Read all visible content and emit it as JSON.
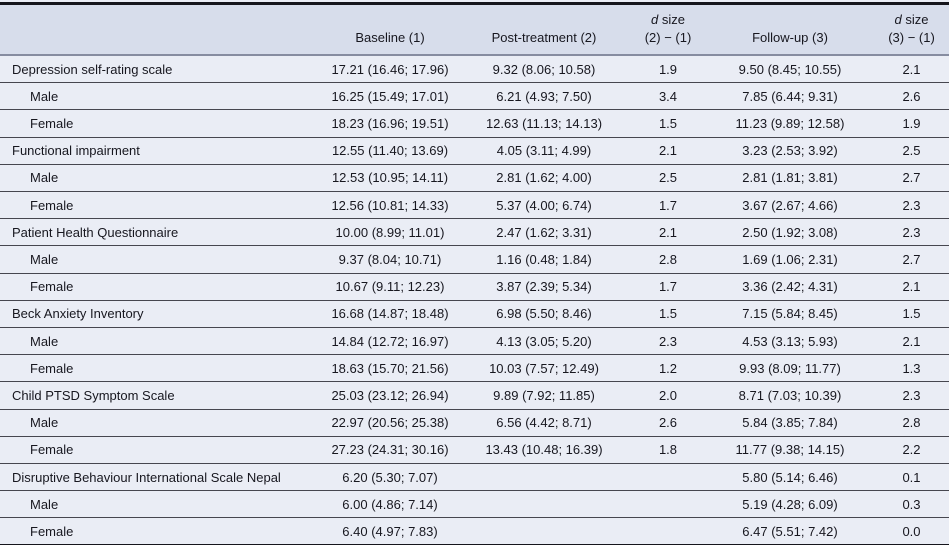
{
  "table": {
    "header": [
      {
        "id": "rowlabel",
        "lines": [
          ""
        ],
        "em_first": false
      },
      {
        "id": "baseline",
        "lines": [
          "Baseline (1)"
        ],
        "em_first": false
      },
      {
        "id": "post_treatment",
        "lines": [
          "Post-treatment (2)"
        ],
        "em_first": false
      },
      {
        "id": "d_size_2_1",
        "lines": [
          "d size",
          "(2) − (1)"
        ],
        "em_first": true
      },
      {
        "id": "follow_up",
        "lines": [
          "Follow-up (3)"
        ],
        "em_first": false
      },
      {
        "id": "d_size_3_1",
        "lines": [
          "d size",
          "(3) − (1)"
        ],
        "em_first": true
      }
    ],
    "rows": [
      {
        "label": "Depression self-rating scale",
        "indent": false,
        "baseline": "17.21 (16.46; 17.96)",
        "post": "9.32 (8.06; 10.58)",
        "d21": "1.9",
        "follow": "9.50 (8.45; 10.55)",
        "d31": "2.1"
      },
      {
        "label": "Male",
        "indent": true,
        "baseline": "16.25 (15.49; 17.01)",
        "post": "6.21 (4.93; 7.50)",
        "d21": "3.4",
        "follow": "7.85 (6.44; 9.31)",
        "d31": "2.6"
      },
      {
        "label": "Female",
        "indent": true,
        "baseline": "18.23 (16.96; 19.51)",
        "post": "12.63 (11.13; 14.13)",
        "d21": "1.5",
        "follow": "11.23 (9.89; 12.58)",
        "d31": "1.9"
      },
      {
        "label": "Functional impairment",
        "indent": false,
        "baseline": "12.55 (11.40; 13.69)",
        "post": "4.05 (3.11; 4.99)",
        "d21": "2.1",
        "follow": "3.23 (2.53; 3.92)",
        "d31": "2.5"
      },
      {
        "label": "Male",
        "indent": true,
        "baseline": "12.53 (10.95; 14.11)",
        "post": "2.81 (1.62; 4.00)",
        "d21": "2.5",
        "follow": "2.81 (1.81; 3.81)",
        "d31": "2.7"
      },
      {
        "label": "Female",
        "indent": true,
        "baseline": "12.56 (10.81; 14.33)",
        "post": "5.37 (4.00; 6.74)",
        "d21": "1.7",
        "follow": "3.67 (2.67; 4.66)",
        "d31": "2.3"
      },
      {
        "label": "Patient Health Questionnaire",
        "indent": false,
        "baseline": "10.00 (8.99; 11.01)",
        "post": "2.47 (1.62; 3.31)",
        "d21": "2.1",
        "follow": "2.50 (1.92; 3.08)",
        "d31": "2.3"
      },
      {
        "label": "Male",
        "indent": true,
        "baseline": "9.37 (8.04; 10.71)",
        "post": "1.16 (0.48; 1.84)",
        "d21": "2.8",
        "follow": "1.69 (1.06; 2.31)",
        "d31": "2.7"
      },
      {
        "label": "Female",
        "indent": true,
        "baseline": "10.67 (9.11; 12.23)",
        "post": "3.87 (2.39; 5.34)",
        "d21": "1.7",
        "follow": "3.36 (2.42; 4.31)",
        "d31": "2.1"
      },
      {
        "label": "Beck Anxiety Inventory",
        "indent": false,
        "baseline": "16.68 (14.87; 18.48)",
        "post": "6.98 (5.50; 8.46)",
        "d21": "1.5",
        "follow": "7.15 (5.84; 8.45)",
        "d31": "1.5"
      },
      {
        "label": "Male",
        "indent": true,
        "baseline": "14.84 (12.72; 16.97)",
        "post": "4.13 (3.05; 5.20)",
        "d21": "2.3",
        "follow": "4.53 (3.13; 5.93)",
        "d31": "2.1"
      },
      {
        "label": "Female",
        "indent": true,
        "baseline": "18.63 (15.70; 21.56)",
        "post": "10.03 (7.57; 12.49)",
        "d21": "1.2",
        "follow": "9.93 (8.09; 11.77)",
        "d31": "1.3"
      },
      {
        "label": "Child PTSD Symptom Scale",
        "indent": false,
        "baseline": "25.03 (23.12; 26.94)",
        "post": "9.89 (7.92; 11.85)",
        "d21": "2.0",
        "follow": "8.71 (7.03; 10.39)",
        "d31": "2.3"
      },
      {
        "label": "Male",
        "indent": true,
        "baseline": "22.97 (20.56; 25.38)",
        "post": "6.56 (4.42; 8.71)",
        "d21": "2.6",
        "follow": "5.84 (3.85; 7.84)",
        "d31": "2.8"
      },
      {
        "label": "Female",
        "indent": true,
        "baseline": "27.23 (24.31; 30.16)",
        "post": "13.43 (10.48; 16.39)",
        "d21": "1.8",
        "follow": "11.77 (9.38; 14.15)",
        "d31": "2.2"
      },
      {
        "label": "Disruptive Behaviour International Scale Nepal",
        "indent": false,
        "baseline": "6.20 (5.30; 7.07)",
        "post": "",
        "d21": "",
        "follow": "5.80 (5.14; 6.46)",
        "d31": "0.1"
      },
      {
        "label": "Male",
        "indent": true,
        "baseline": "6.00 (4.86; 7.14)",
        "post": "",
        "d21": "",
        "follow": "5.19 (4.28; 6.09)",
        "d31": "0.3"
      },
      {
        "label": "Female",
        "indent": true,
        "baseline": "6.40 (4.97; 7.83)",
        "post": "",
        "d21": "",
        "follow": "6.47 (5.51; 7.42)",
        "d31": "0.0"
      }
    ],
    "colors": {
      "header_bg": "#d7ddeb",
      "row_bg": "#eaedf5",
      "thick_rule": "#15151c",
      "row_rule": "#46464f",
      "header_rule": "#868ca0",
      "text": "#17171f"
    }
  }
}
